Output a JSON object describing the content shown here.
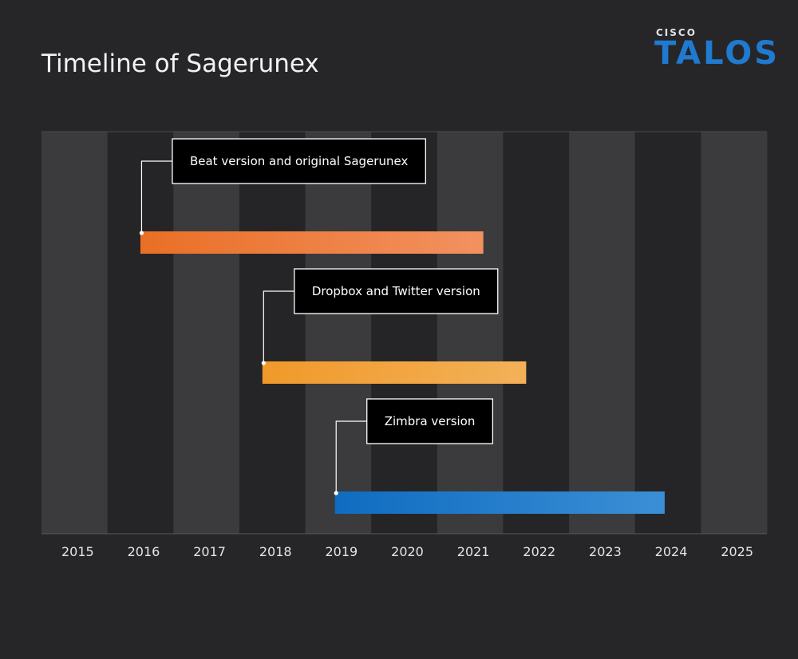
{
  "header": {
    "title": "Timeline of Sagerunex"
  },
  "logo": {
    "brand": "CISCO",
    "product": "TALOS"
  },
  "colors": {
    "background": "#262628",
    "band_light": "#3b3b3e",
    "band_dark": "#252527",
    "orange_start": "#ea6f26",
    "orange_end": "#f29160",
    "amber_start": "#f0992a",
    "amber_end": "#f3b158",
    "blue_start": "#0f6cc0",
    "blue_end": "#3b8fd6",
    "logo_blue": "#1f7ad0"
  },
  "chart_data": {
    "type": "timeline",
    "title": "Timeline of Sagerunex",
    "x_ticks": [
      "2015",
      "2016",
      "2017",
      "2018",
      "2019",
      "2020",
      "2021",
      "2022",
      "2023",
      "2024",
      "2025"
    ],
    "xlim": [
      2015,
      2026
    ],
    "series": [
      {
        "name": "Beat version and original Sagerunex",
        "start": 2016.5,
        "end": 2021.7,
        "color": "orange"
      },
      {
        "name": "Dropbox and Twitter version",
        "start": 2018.35,
        "end": 2022.35,
        "color": "amber"
      },
      {
        "name": "Zimbra version",
        "start": 2019.45,
        "end": 2024.45,
        "color": "blue"
      }
    ]
  }
}
